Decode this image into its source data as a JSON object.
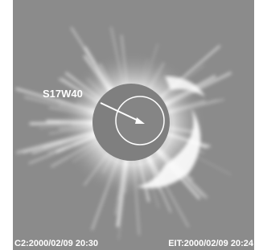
{
  "annotation": {
    "label": "S17W40"
  },
  "footer": {
    "c2": "C2:2000/02/09 20:30",
    "eit": "EIT:2000/02/09 20:24"
  }
}
